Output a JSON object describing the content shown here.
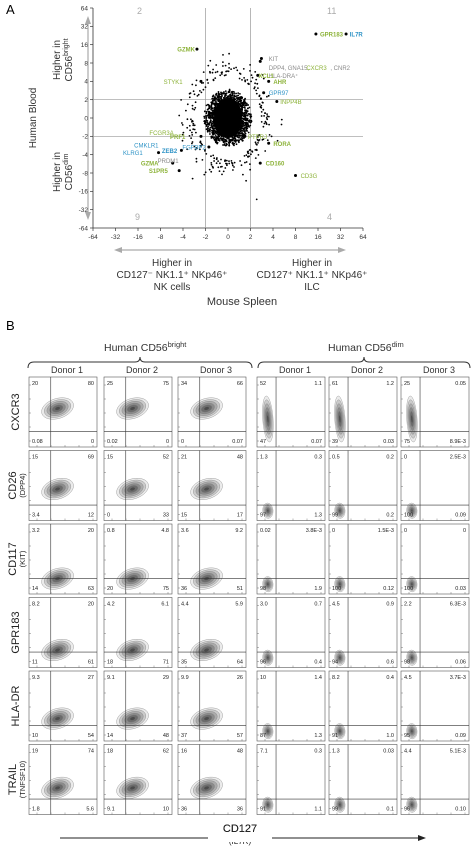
{
  "panel_a": {
    "label": "A",
    "y_axis_title": "Human Blood",
    "y_upper_label_1": "Higher in",
    "y_upper_label_2": "CD56",
    "y_upper_sup": "bright",
    "y_lower_label_1": "Higher in",
    "y_lower_label_2": "CD56",
    "y_lower_sup": "dim",
    "x_axis_title": "Mouse Spleen",
    "x_left_label_1": "Higher in",
    "x_left_label_2": "CD127⁻ NK1.1⁺ NKp46⁺",
    "x_left_label_3": "NK cells",
    "x_right_label_1": "Higher in",
    "x_right_label_2": "CD127⁺ NK1.1⁺ NKp46⁺",
    "x_right_label_3": "ILC",
    "quadrant_counts": {
      "top_left": "2",
      "top_right": "11",
      "bottom_left": "9",
      "bottom_right": "4"
    },
    "colors": {
      "green": "#8db33a",
      "blue": "#2e93c6",
      "gray": "#8a8a8a",
      "axis": "#555555"
    },
    "gene_labels": [
      {
        "text": "GZMK",
        "dx": -2.6,
        "dy": 13.5,
        "color": "green",
        "bold": true
      },
      {
        "text": "GPR183",
        "dx": 16,
        "dy": 24,
        "color": "green",
        "bold": true
      },
      {
        "text": "IL7R",
        "dx": 40,
        "dy": 24,
        "color": "blue",
        "bold": true
      },
      {
        "text": "KIT",
        "dx": 3.3,
        "dy": 9.5,
        "color": "gray",
        "bold": false
      },
      {
        "text": "DPP4, GNA15,",
        "dx": 3.3,
        "dy": 6.7,
        "color": "gray",
        "bold": false
      },
      {
        "text": "CXCR3",
        "dx": 10.5,
        "dy": 6.7,
        "color": "green",
        "bold": false
      },
      {
        "text": ", CNR2",
        "dx": 22,
        "dy": 6.7,
        "color": "gray",
        "bold": false
      },
      {
        "text": "HLA-DRA⁺",
        "dx": 3.3,
        "dy": 5.0,
        "color": "gray",
        "bold": false
      },
      {
        "text": "XCL1",
        "dx": 2.4,
        "dy": 5.0,
        "color": "green",
        "bold": true
      },
      {
        "text": "AHR",
        "dx": 3.8,
        "dy": 4.0,
        "color": "green",
        "bold": true
      },
      {
        "text": "STYK1",
        "dx": -3.8,
        "dy": 4.0,
        "color": "green",
        "bold": false
      },
      {
        "text": "GPR97",
        "dx": 3.3,
        "dy": 2.6,
        "color": "blue",
        "bold": false
      },
      {
        "text": "INPP4B",
        "dx": 4.7,
        "dy": 1.8,
        "color": "green",
        "bold": false
      },
      {
        "text": "FCGR3A",
        "dx": -5.0,
        "dy": -1.6,
        "color": "green",
        "bold": false
      },
      {
        "text": "PRF1",
        "dx": -3.5,
        "dy": -2.0,
        "color": "green",
        "bold": true
      },
      {
        "text": "PTPRJ",
        "dx": 1.6,
        "dy": -2.0,
        "color": "green",
        "bold": false
      },
      {
        "text": "RORA",
        "dx": 3.8,
        "dy": -2.6,
        "color": "green",
        "bold": true
      },
      {
        "text": "CMKLR1",
        "dx": -8.0,
        "dy": -2.8,
        "color": "blue",
        "bold": false
      },
      {
        "text": "ZEB2",
        "dx": -4.5,
        "dy": -3.4,
        "color": "blue",
        "bold": true
      },
      {
        "text": "FGFBP2",
        "dx": -1.8,
        "dy": -3.0,
        "color": "blue",
        "bold": false
      },
      {
        "text": "KLRG1",
        "dx": -13,
        "dy": -3.7,
        "color": "blue",
        "bold": false
      },
      {
        "text": "PRDM1",
        "dx": -4.3,
        "dy": -5.0,
        "color": "gray",
        "bold": false
      },
      {
        "text": "CD160",
        "dx": 3.0,
        "dy": -5.5,
        "color": "green",
        "bold": true
      },
      {
        "text": "GZMA",
        "dx": -8.0,
        "dy": -5.5,
        "color": "green",
        "bold": true
      },
      {
        "text": "S1PR5",
        "dx": -6.0,
        "dy": -7.3,
        "color": "green",
        "bold": true
      },
      {
        "text": "CD3G",
        "dx": 8.8,
        "dy": -8.8,
        "color": "green",
        "bold": false
      }
    ]
  },
  "chart_data": {
    "type": "scatter",
    "title": "",
    "xlabel": "Mouse Spleen",
    "ylabel": "Human Blood",
    "x_ticks": [
      "-64",
      "-32",
      "-16",
      "-8",
      "-4",
      "-2",
      "0",
      "2",
      "4",
      "8",
      "16",
      "32",
      "64"
    ],
    "y_ticks": [
      "64",
      "32",
      "16",
      "8",
      "4",
      "2",
      "0",
      "-2",
      "-4",
      "-8",
      "-16",
      "-32",
      "-64"
    ],
    "x_tick_values": [
      -64,
      -32,
      -16,
      -8,
      -4,
      -2,
      0,
      2,
      4,
      8,
      16,
      32,
      64
    ],
    "y_tick_values": [
      64,
      32,
      16,
      8,
      4,
      2,
      0,
      -2,
      -4,
      -8,
      -16,
      -32,
      -64
    ],
    "xlim": [
      -64,
      64
    ],
    "ylim": [
      -64,
      64
    ],
    "threshold_lines": {
      "x": [
        -2,
        2
      ],
      "y": [
        -2,
        2
      ]
    },
    "highlighted_points": [
      {
        "x": -2.6,
        "y": 13.5
      },
      {
        "x": 15,
        "y": 24
      },
      {
        "x": 38,
        "y": 24
      },
      {
        "x": 2.8,
        "y": 9.5
      },
      {
        "x": 2.5,
        "y": 5.0
      },
      {
        "x": 3.5,
        "y": 4.0
      },
      {
        "x": -2.3,
        "y": 4.0
      },
      {
        "x": 3.0,
        "y": 2.6
      },
      {
        "x": 4.5,
        "y": 1.8
      },
      {
        "x": -2.3,
        "y": -2.0
      },
      {
        "x": 1.5,
        "y": -2.0
      },
      {
        "x": 3.5,
        "y": -2.6
      },
      {
        "x": -4.2,
        "y": -3.4
      },
      {
        "x": -1.7,
        "y": -3.0
      },
      {
        "x": -8.5,
        "y": -3.7
      },
      {
        "x": 2.7,
        "y": -5.5
      },
      {
        "x": -5.5,
        "y": -5.5
      },
      {
        "x": -4.5,
        "y": -7.3
      },
      {
        "x": 8.0,
        "y": -8.8
      },
      {
        "x": 2.7,
        "y": 8.5
      }
    ]
  },
  "panel_b": {
    "label": "B",
    "group_bright": "Human CD56",
    "group_bright_sup": "bright",
    "group_dim": "Human CD56",
    "group_dim_sup": "dim",
    "donors": [
      "Donor 1",
      "Donor 2",
      "Donor 3",
      "Donor 1",
      "Donor 2",
      "Donor 3"
    ],
    "rows": [
      {
        "label": "CXCR3",
        "sublabel": "",
        "cells": [
          [
            "20",
            "80",
            "0.08",
            "0"
          ],
          [
            "25",
            "75",
            "0.02",
            "0"
          ],
          [
            "34",
            "66",
            "0",
            "0.07"
          ],
          [
            "52",
            "1.1",
            "47",
            "0.07"
          ],
          [
            "61",
            "1.2",
            "39",
            "0.03"
          ],
          [
            "25",
            "0.05",
            "75",
            "8.9E-3"
          ]
        ]
      },
      {
        "label": "CD26",
        "sublabel": "(DPP4)",
        "cells": [
          [
            "15",
            "69",
            "3.4",
            "12"
          ],
          [
            "15",
            "52",
            "0",
            "33"
          ],
          [
            "21",
            "48",
            "15",
            "17"
          ],
          [
            "1.3",
            "0.3",
            "97",
            "1.3"
          ],
          [
            "0.5",
            "0.2",
            "99",
            "0.2"
          ],
          [
            "0",
            "2.5E-3",
            "100",
            "0.09"
          ]
        ]
      },
      {
        "label": "CD117",
        "sublabel": "(KIT)",
        "cells": [
          [
            "3.2",
            "20",
            "14",
            "63"
          ],
          [
            "0.8",
            "4.8",
            "20",
            "75"
          ],
          [
            "3.6",
            "9.2",
            "36",
            "51"
          ],
          [
            "0.02",
            "3.8E-3",
            "98",
            "1.9"
          ],
          [
            "0",
            "1.5E-3",
            "100",
            "0.12"
          ],
          [
            "0",
            "0",
            "100",
            "0.03"
          ]
        ]
      },
      {
        "label": "GPR183",
        "sublabel": "",
        "cells": [
          [
            "8.2",
            "20",
            "11",
            "61"
          ],
          [
            "4.2",
            "6.1",
            "18",
            "71"
          ],
          [
            "4.4",
            "5.9",
            "35",
            "64"
          ],
          [
            "3.0",
            "0.7",
            "96",
            "0.4"
          ],
          [
            "4.5",
            "0.9",
            "94",
            "0.6"
          ],
          [
            "2.2",
            "6.3E-3",
            "98",
            "0.06"
          ]
        ]
      },
      {
        "label": "HLA-DR",
        "sublabel": "",
        "cells": [
          [
            "9.3",
            "27",
            "10",
            "54"
          ],
          [
            "9.1",
            "29",
            "14",
            "48"
          ],
          [
            "9.9",
            "26",
            "37",
            "57"
          ],
          [
            "10",
            "1.4",
            "87",
            "1.3"
          ],
          [
            "8.2",
            "0.4",
            "91",
            "1.0"
          ],
          [
            "4.5",
            "3.7E-3",
            "95",
            "0.09"
          ]
        ]
      },
      {
        "label": "TRAIL",
        "sublabel": "(TNFSF10)",
        "cells": [
          [
            "19",
            "74",
            "1.8",
            "5.6"
          ],
          [
            "18",
            "62",
            "9.1",
            "10"
          ],
          [
            "16",
            "48",
            "36",
            "36"
          ],
          [
            "7.1",
            "0.3",
            "91",
            "1.1"
          ],
          [
            "1.3",
            "0.03",
            "99",
            "0.1"
          ],
          [
            "4.4",
            "5.1E-3",
            "96",
            "0.10"
          ]
        ]
      }
    ],
    "x_axis_title": "CD127",
    "x_axis_subtitle": "(IL7R)"
  }
}
